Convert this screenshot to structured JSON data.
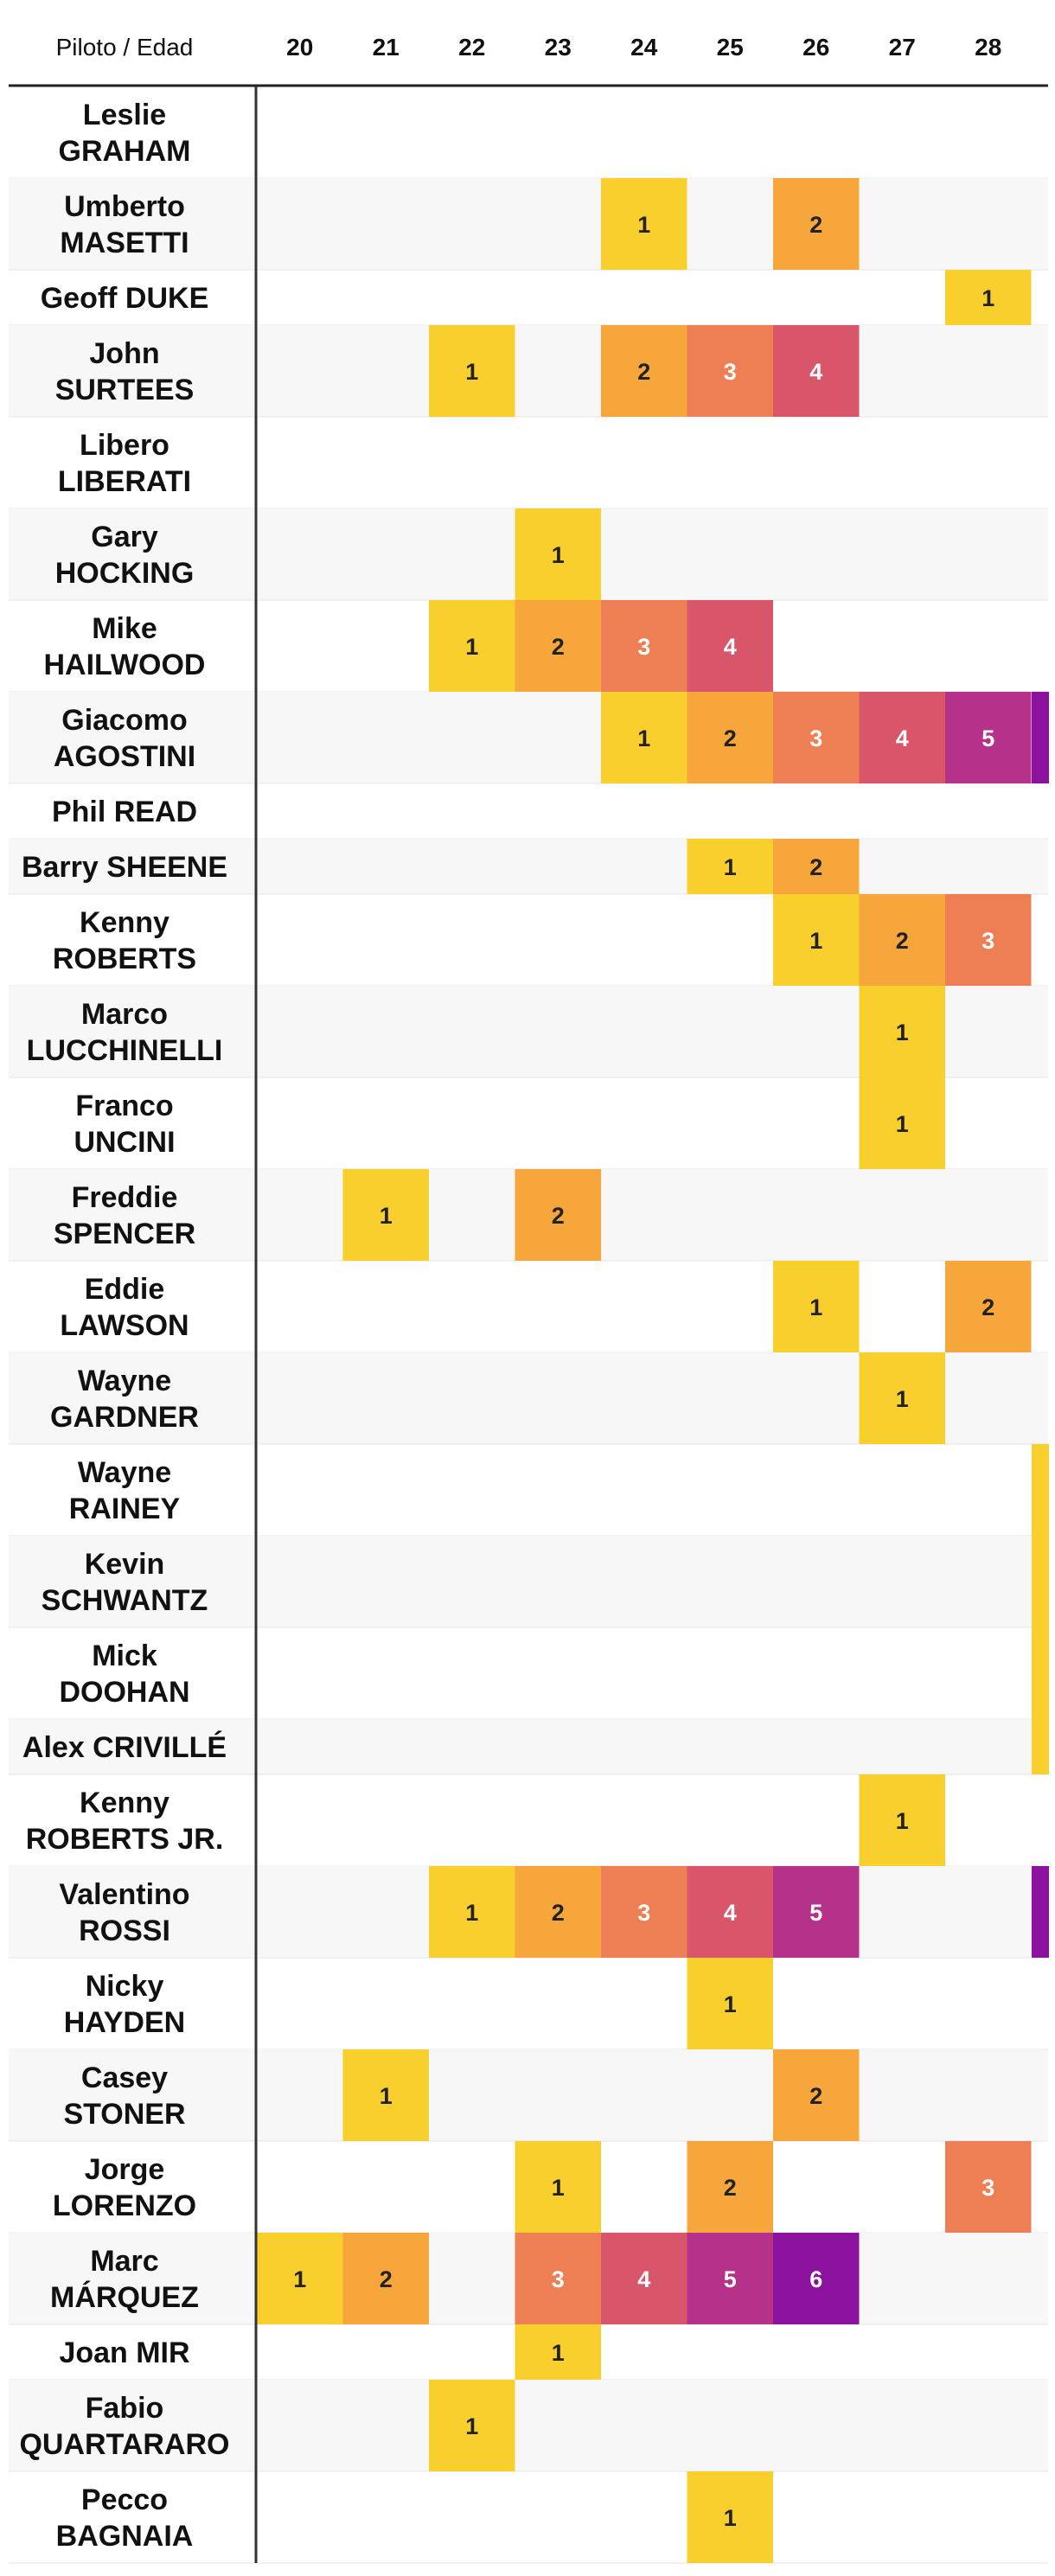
{
  "chart_data": {
    "type": "heatmap",
    "corner_label": "Piloto / Edad",
    "x": [
      20,
      21,
      22,
      23,
      24,
      25,
      26,
      27,
      28
    ],
    "colors": {
      "1": "#f9cf2e",
      "2": "#f7a63c",
      "3": "#ee7f55",
      "4": "#d9556a",
      "5": "#b5318a",
      "6": "#8c119e",
      "stripe": "#f7f7f7",
      "row_line": "#e4e4e4",
      "axis": "#333333"
    },
    "rows": [
      {
        "name": [
          "Leslie",
          "GRAHAM"
        ],
        "titles": []
      },
      {
        "name": [
          "Umberto",
          "MASETTI"
        ],
        "titles": [
          {
            "age": 24,
            "n": 1
          },
          {
            "age": 26,
            "n": 2
          }
        ]
      },
      {
        "name": [
          "Geoff DUKE"
        ],
        "titles": [
          {
            "age": 28,
            "n": 1
          }
        ]
      },
      {
        "name": [
          "John",
          "SURTEES"
        ],
        "titles": [
          {
            "age": 22,
            "n": 1
          },
          {
            "age": 24,
            "n": 2
          },
          {
            "age": 25,
            "n": 3
          },
          {
            "age": 26,
            "n": 4
          }
        ]
      },
      {
        "name": [
          "Libero",
          "LIBERATI"
        ],
        "titles": []
      },
      {
        "name": [
          "Gary",
          "HOCKING"
        ],
        "titles": [
          {
            "age": 23,
            "n": 1
          }
        ]
      },
      {
        "name": [
          "Mike",
          "HAILWOOD"
        ],
        "titles": [
          {
            "age": 22,
            "n": 1
          },
          {
            "age": 23,
            "n": 2
          },
          {
            "age": 24,
            "n": 3
          },
          {
            "age": 25,
            "n": 4
          }
        ]
      },
      {
        "name": [
          "Giacomo",
          "AGOSTINI"
        ],
        "titles": [
          {
            "age": 24,
            "n": 1
          },
          {
            "age": 25,
            "n": 2
          },
          {
            "age": 26,
            "n": 3
          },
          {
            "age": 27,
            "n": 4
          },
          {
            "age": 28,
            "n": 5
          }
        ],
        "overflow": "6"
      },
      {
        "name": [
          "Phil READ"
        ],
        "titles": []
      },
      {
        "name": [
          "Barry SHEENE"
        ],
        "titles": [
          {
            "age": 25,
            "n": 1
          },
          {
            "age": 26,
            "n": 2
          }
        ]
      },
      {
        "name": [
          "Kenny",
          "ROBERTS"
        ],
        "titles": [
          {
            "age": 26,
            "n": 1
          },
          {
            "age": 27,
            "n": 2
          },
          {
            "age": 28,
            "n": 3
          }
        ]
      },
      {
        "name": [
          "Marco",
          "LUCCHINELLI"
        ],
        "titles": [
          {
            "age": 27,
            "n": 1
          }
        ]
      },
      {
        "name": [
          "Franco",
          "UNCINI"
        ],
        "titles": [
          {
            "age": 27,
            "n": 1
          }
        ]
      },
      {
        "name": [
          "Freddie",
          "SPENCER"
        ],
        "titles": [
          {
            "age": 21,
            "n": 1
          },
          {
            "age": 23,
            "n": 2
          }
        ]
      },
      {
        "name": [
          "Eddie",
          "LAWSON"
        ],
        "titles": [
          {
            "age": 26,
            "n": 1
          },
          {
            "age": 28,
            "n": 2
          }
        ]
      },
      {
        "name": [
          "Wayne",
          "GARDNER"
        ],
        "titles": [
          {
            "age": 27,
            "n": 1
          }
        ]
      },
      {
        "name": [
          "Wayne",
          "RAINEY"
        ],
        "titles": [],
        "overflow": "1"
      },
      {
        "name": [
          "Kevin",
          "SCHWANTZ"
        ],
        "titles": [],
        "overflow": "1"
      },
      {
        "name": [
          "Mick",
          "DOOHAN"
        ],
        "titles": [],
        "overflow": "1"
      },
      {
        "name": [
          "Alex CRIVILLÉ"
        ],
        "titles": [],
        "overflow": "1"
      },
      {
        "name": [
          "Kenny",
          "ROBERTS JR."
        ],
        "titles": [
          {
            "age": 27,
            "n": 1
          }
        ]
      },
      {
        "name": [
          "Valentino",
          "ROSSI"
        ],
        "titles": [
          {
            "age": 22,
            "n": 1
          },
          {
            "age": 23,
            "n": 2
          },
          {
            "age": 24,
            "n": 3
          },
          {
            "age": 25,
            "n": 4
          },
          {
            "age": 26,
            "n": 5
          }
        ],
        "overflow": "6"
      },
      {
        "name": [
          "Nicky",
          "HAYDEN"
        ],
        "titles": [
          {
            "age": 25,
            "n": 1
          }
        ]
      },
      {
        "name": [
          "Casey",
          "STONER"
        ],
        "titles": [
          {
            "age": 21,
            "n": 1
          },
          {
            "age": 26,
            "n": 2
          }
        ]
      },
      {
        "name": [
          "Jorge",
          "LORENZO"
        ],
        "titles": [
          {
            "age": 23,
            "n": 1
          },
          {
            "age": 25,
            "n": 2
          },
          {
            "age": 28,
            "n": 3
          }
        ]
      },
      {
        "name": [
          "Marc",
          "MÁRQUEZ"
        ],
        "titles": [
          {
            "age": 20,
            "n": 1
          },
          {
            "age": 21,
            "n": 2
          },
          {
            "age": 23,
            "n": 3
          },
          {
            "age": 24,
            "n": 4
          },
          {
            "age": 25,
            "n": 5
          },
          {
            "age": 26,
            "n": 6
          }
        ]
      },
      {
        "name": [
          "Joan MIR"
        ],
        "titles": [
          {
            "age": 23,
            "n": 1
          }
        ]
      },
      {
        "name": [
          "Fabio",
          "QUARTARARO"
        ],
        "titles": [
          {
            "age": 22,
            "n": 1
          }
        ]
      },
      {
        "name": [
          "Pecco",
          "BAGNAIA"
        ],
        "titles": [
          {
            "age": 25,
            "n": 1
          }
        ]
      }
    ]
  }
}
